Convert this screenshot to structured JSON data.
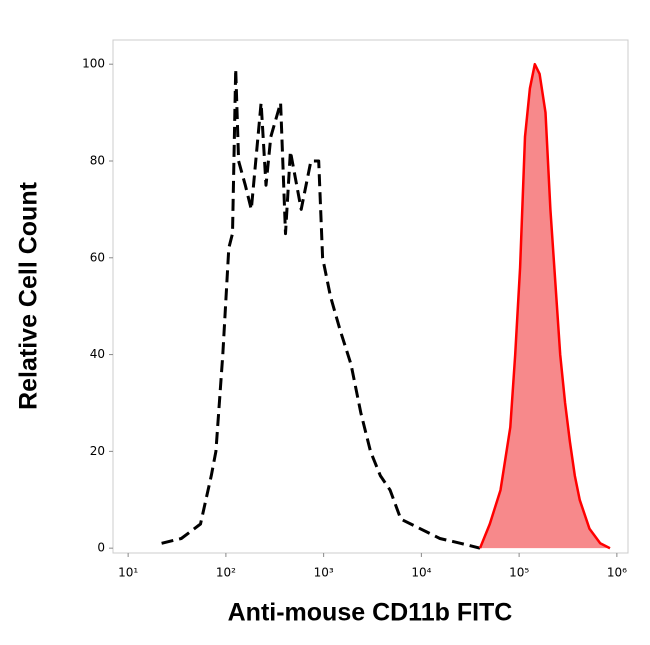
{
  "chart_data": {
    "type": "histogram-overlay",
    "xlabel": "Anti-mouse CD11b FITC",
    "ylabel": "Relative Cell Count",
    "xscale": "log",
    "xlim": [
      7,
      1300000
    ],
    "ylim": [
      -1,
      105
    ],
    "xticks": [
      {
        "value": 10,
        "label": "10¹"
      },
      {
        "value": 100,
        "label": "10²"
      },
      {
        "value": 1000,
        "label": "10³"
      },
      {
        "value": 10000,
        "label": "10⁴"
      },
      {
        "value": 100000,
        "label": "10⁵"
      },
      {
        "value": 1000000,
        "label": "10⁶"
      }
    ],
    "yticks": [
      0,
      20,
      40,
      60,
      80,
      100
    ],
    "series": [
      {
        "color": "#000000",
        "style": "dashed",
        "filled": false,
        "x": [
          22,
          35,
          55,
          71,
          79,
          93,
          107,
          117,
          126,
          135,
          158,
          182,
          229,
          257,
          288,
          363,
          407,
          457,
          589,
          741,
          891,
          977,
          1175,
          1479,
          1905,
          2399,
          3020,
          3802,
          4786,
          6166,
          9772,
          15488,
          25119,
          39811
        ],
        "values": [
          1,
          2,
          5,
          15,
          20,
          40,
          62,
          65,
          99,
          80,
          75,
          70,
          92,
          75,
          85,
          92,
          65,
          82,
          70,
          80,
          80,
          60,
          52,
          45,
          38,
          28,
          20,
          15,
          12,
          6,
          4,
          2,
          1,
          0
        ]
      },
      {
        "color": "#ff0000",
        "fill": "#f7898b",
        "style": "solid",
        "filled": true,
        "x": [
          39811,
          50119,
          64565,
          81283,
          91201,
          102329,
          114815,
          128825,
          144544,
          162181,
          186209,
          208930,
          234423,
          263027,
          295121,
          331131,
          371535,
          416869,
          524807,
          676083,
          851138
        ],
        "values": [
          0,
          5,
          12,
          25,
          40,
          58,
          85,
          95,
          100,
          98,
          90,
          70,
          55,
          40,
          30,
          22,
          15,
          10,
          4,
          1,
          0
        ]
      }
    ]
  }
}
